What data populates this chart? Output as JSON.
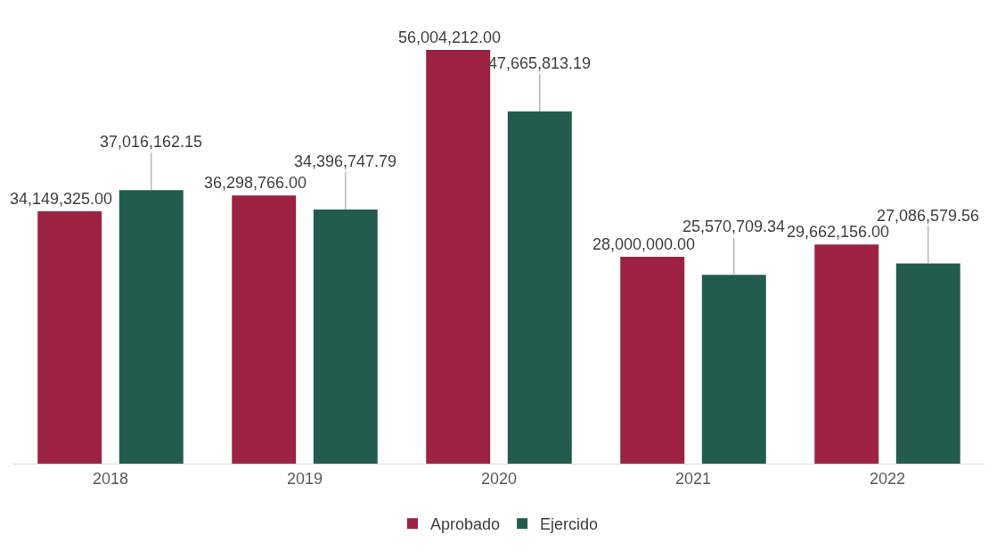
{
  "chart_data": {
    "type": "bar",
    "categories": [
      "2018",
      "2019",
      "2020",
      "2021",
      "2022"
    ],
    "series": [
      {
        "name": "Aprobado",
        "color": "#9b2240",
        "values": [
          34149325.0,
          36298766.0,
          56004212.0,
          28000000.0,
          29662156.0
        ],
        "value_labels": [
          "34,149,325.00",
          "36,298,766.00",
          "56,004,212.00",
          "28,000,000.00",
          "29,662,156.00"
        ]
      },
      {
        "name": "Ejercido",
        "color": "#235b4e",
        "values": [
          37016162.15,
          34396747.79,
          47665813.19,
          25570709.34,
          27086579.56
        ],
        "value_labels": [
          "37,016,162.15",
          "34,396,747.79",
          "47,665,813.19",
          "25,570,709.34",
          "27,086,579.56"
        ]
      }
    ],
    "tick_labels": "x",
    "grid": false,
    "legend": "bottom"
  }
}
